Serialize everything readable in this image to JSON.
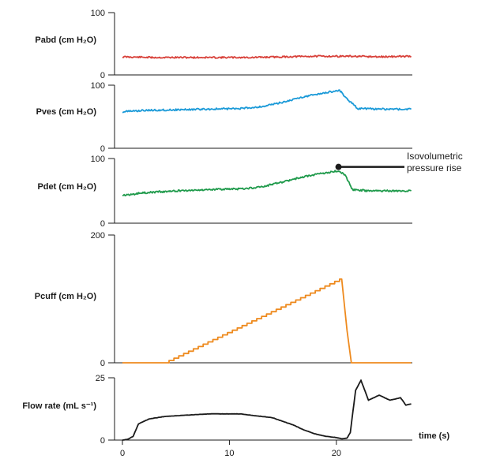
{
  "chart_data": [
    {
      "type": "line",
      "ylabel": "Pabd (cm H₂O)",
      "ylim": [
        0,
        100
      ],
      "yticks": [
        "0",
        "100"
      ],
      "xlim": [
        0,
        27
      ],
      "color": "#d8413a",
      "series": [
        {
          "x": [
            0,
            3,
            6,
            9,
            12,
            15,
            18,
            21,
            24,
            27
          ],
          "values": [
            29,
            28,
            28,
            28,
            28,
            29,
            30,
            30,
            29,
            30
          ]
        }
      ]
    },
    {
      "type": "line",
      "ylabel": "Pves (cm H₂O)",
      "ylim": [
        0,
        100
      ],
      "yticks": [
        "0",
        "100"
      ],
      "xlim": [
        0,
        27
      ],
      "color": "#1b9ad8",
      "series": [
        {
          "x": [
            0,
            2,
            5,
            8,
            11,
            13,
            15,
            17,
            19,
            20.3,
            21,
            22,
            24,
            27
          ],
          "values": [
            58,
            60,
            61,
            62,
            63,
            66,
            73,
            82,
            88,
            92,
            78,
            63,
            62,
            62
          ]
        }
      ]
    },
    {
      "type": "line",
      "ylabel": "Pdet (cm H₂O)",
      "ylim": [
        0,
        100
      ],
      "yticks": [
        "0",
        "100"
      ],
      "xlim": [
        0,
        27
      ],
      "color": "#1f9a4b",
      "series": [
        {
          "x": [
            0,
            2,
            5,
            8,
            11,
            13,
            15,
            17,
            19,
            20.2,
            20.8,
            21.5,
            23,
            27
          ],
          "values": [
            43,
            47,
            50,
            52,
            53,
            56,
            64,
            72,
            78,
            81,
            75,
            52,
            50,
            50
          ]
        }
      ],
      "annotation": {
        "lines": [
          "Isovolumetric",
          "pressure rise"
        ],
        "x": 20.2,
        "y": 87
      }
    },
    {
      "type": "line",
      "ylabel": "Pcuff (cm H₂O)",
      "ylim": [
        0,
        200
      ],
      "yticks": [
        "0",
        "200"
      ],
      "xlim": [
        0,
        27
      ],
      "color": "#ee8a1e",
      "series": [
        {
          "x": [
            0,
            3.9,
            20.3,
            20.5,
            21.0,
            21.4,
            27
          ],
          "values": [
            0,
            0,
            131,
            131,
            50,
            0,
            0
          ]
        }
      ]
    },
    {
      "type": "line",
      "ylabel": "Flow rate (mL s⁻¹)",
      "ylim": [
        0,
        25
      ],
      "yticks": [
        "0",
        "25"
      ],
      "xlim": [
        0,
        27
      ],
      "xlabel": "time (s)",
      "xticks": [
        0,
        10,
        20
      ],
      "color": "#1a1a1a",
      "series": [
        {
          "x": [
            0,
            0.5,
            1.0,
            1.5,
            2.5,
            4,
            6,
            8,
            10,
            11,
            12,
            13,
            14,
            15,
            16,
            17,
            18,
            19,
            20,
            20.5,
            21.0,
            21.3,
            21.8,
            22.3,
            23,
            24,
            25,
            26,
            26.5,
            27
          ],
          "values": [
            0,
            0.3,
            1.5,
            6.5,
            8.5,
            9.5,
            10,
            10.5,
            10.5,
            10.5,
            10,
            9.5,
            9,
            7.5,
            6,
            4,
            2.5,
            1.5,
            1,
            0.5,
            0.8,
            3,
            20,
            24,
            16,
            18,
            16,
            17,
            14,
            14.5
          ]
        }
      ]
    }
  ]
}
